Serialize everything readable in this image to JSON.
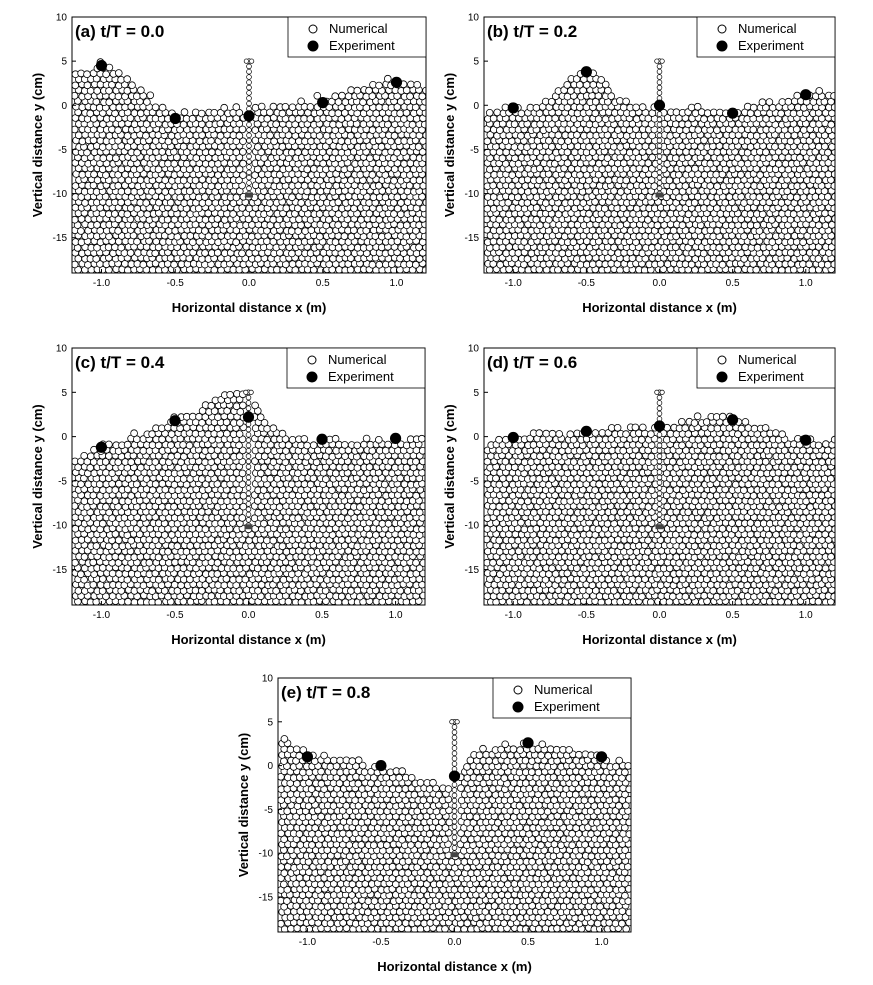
{
  "figure": {
    "panel_count": 5
  },
  "chart_data": [
    {
      "type": "scatter",
      "panel_label": "(a) t/T = 0.0",
      "xlabel": "Horizontal distance x (m)",
      "ylabel": "Vertical distance y (cm)",
      "xlim": [
        -1.2,
        1.2
      ],
      "ylim": [
        -19,
        10
      ],
      "xticks": [
        -1.0,
        -0.5,
        0.0,
        0.5,
        1.0
      ],
      "xtick_labels": [
        "-1.0",
        "-0.5",
        "0.0",
        "0.5",
        "1.0"
      ],
      "yticks": [
        10,
        5,
        0,
        -5,
        -10,
        -15
      ],
      "ytick_labels": [
        "10",
        "5",
        "0",
        "-5",
        "-10",
        "-15"
      ],
      "grid": false,
      "legend_position": "top-right",
      "series": [
        {
          "name": "Numerical",
          "marker": "open-circle",
          "free_surface": {
            "x": [
              -1.2,
              -1.1,
              -1.0,
              -0.9,
              -0.8,
              -0.7,
              -0.6,
              -0.5,
              -0.4,
              -0.3,
              -0.2,
              -0.1,
              0.0,
              0.1,
              0.2,
              0.3,
              0.4,
              0.5,
              0.6,
              0.7,
              0.8,
              0.9,
              1.0,
              1.1,
              1.2
            ],
            "y": [
              3.5,
              4.0,
              4.8,
              4.2,
              2.8,
              1.2,
              -0.3,
              -1.2,
              -0.9,
              -0.5,
              -0.2,
              0.0,
              -0.5,
              -0.3,
              0.0,
              0.3,
              0.6,
              0.9,
              1.4,
              1.8,
              2.3,
              2.7,
              3.0,
              2.7,
              2.2
            ]
          }
        },
        {
          "name": "Experiment",
          "marker": "filled-circle",
          "x": [
            -1.0,
            -0.5,
            0.0,
            0.5,
            1.0
          ],
          "y": [
            4.5,
            -1.5,
            -1.2,
            0.3,
            2.6
          ]
        }
      ]
    },
    {
      "type": "scatter",
      "panel_label": "(b) t/T = 0.2",
      "xlabel": "Horizontal distance x (m)",
      "ylabel": "Vertical distance y (cm)",
      "xlim": [
        -1.2,
        1.2
      ],
      "ylim": [
        -19,
        10
      ],
      "xticks": [
        -1.0,
        -0.5,
        0.0,
        0.5,
        1.0
      ],
      "xtick_labels": [
        "-1.0",
        "-0.5",
        "0.0",
        "0.5",
        "1.0"
      ],
      "yticks": [
        10,
        5,
        0,
        -5,
        -10,
        -15
      ],
      "ytick_labels": [
        "10",
        "5",
        "0",
        "-5",
        "-10",
        "-15"
      ],
      "grid": false,
      "legend_position": "top-right",
      "series": [
        {
          "name": "Numerical",
          "marker": "open-circle",
          "free_surface": {
            "x": [
              -1.2,
              -1.1,
              -1.0,
              -0.9,
              -0.8,
              -0.7,
              -0.6,
              -0.5,
              -0.4,
              -0.3,
              -0.2,
              -0.1,
              0.0,
              0.1,
              0.2,
              0.3,
              0.4,
              0.5,
              0.6,
              0.7,
              0.8,
              0.9,
              1.0,
              1.1,
              1.2
            ],
            "y": [
              -0.5,
              -0.4,
              -0.2,
              0.0,
              0.3,
              1.5,
              3.0,
              4.1,
              3.2,
              1.2,
              0.0,
              -0.2,
              -0.3,
              -0.4,
              -0.3,
              -0.2,
              -0.2,
              -0.2,
              0.0,
              0.3,
              0.6,
              0.9,
              1.2,
              1.5,
              1.8
            ]
          }
        },
        {
          "name": "Experiment",
          "marker": "filled-circle",
          "x": [
            -1.0,
            -0.5,
            0.0,
            0.5,
            1.0
          ],
          "y": [
            -0.3,
            3.8,
            0.0,
            -0.9,
            1.2
          ]
        }
      ]
    },
    {
      "type": "scatter",
      "panel_label": "(c) t/T = 0.4",
      "xlabel": "Horizontal distance x (m)",
      "ylabel": "Vertical distance y (cm)",
      "xlim": [
        -1.2,
        1.2
      ],
      "ylim": [
        -19,
        10
      ],
      "xticks": [
        -1.0,
        -0.5,
        0.0,
        0.5,
        1.0
      ],
      "xtick_labels": [
        "-1.0",
        "-0.5",
        "0.0",
        "0.5",
        "1.0"
      ],
      "yticks": [
        10,
        5,
        0,
        -5,
        -10,
        -15
      ],
      "ytick_labels": [
        "10",
        "5",
        "0",
        "-5",
        "-10",
        "-15"
      ],
      "grid": false,
      "legend_position": "top-right",
      "series": [
        {
          "name": "Numerical",
          "marker": "open-circle",
          "free_surface": {
            "x": [
              -1.2,
              -1.1,
              -1.0,
              -0.9,
              -0.8,
              -0.7,
              -0.6,
              -0.5,
              -0.4,
              -0.3,
              -0.2,
              -0.1,
              0.0,
              0.1,
              0.2,
              0.3,
              0.4,
              0.5,
              0.6,
              0.7,
              0.8,
              0.9,
              1.0,
              1.1,
              1.2
            ],
            "y": [
              -2.0,
              -1.6,
              -1.2,
              -0.5,
              0.3,
              0.8,
              1.4,
              1.9,
              2.6,
              3.5,
              4.5,
              5.2,
              5.0,
              2.0,
              0.6,
              -0.1,
              -0.3,
              -0.4,
              -0.4,
              -0.3,
              -0.3,
              -0.3,
              -0.3,
              -0.2,
              -0.1
            ]
          }
        },
        {
          "name": "Experiment",
          "marker": "filled-circle",
          "x": [
            -1.0,
            -0.5,
            0.0,
            0.5,
            1.0
          ],
          "y": [
            -1.2,
            1.8,
            2.2,
            -0.3,
            -0.2
          ]
        }
      ]
    },
    {
      "type": "scatter",
      "panel_label": "(d) t/T = 0.6",
      "xlabel": "Horizontal distance x (m)",
      "ylabel": "Vertical distance y (cm)",
      "xlim": [
        -1.2,
        1.2
      ],
      "ylim": [
        -19,
        10
      ],
      "xticks": [
        -1.0,
        -0.5,
        0.0,
        0.5,
        1.0
      ],
      "xtick_labels": [
        "-1.0",
        "-0.5",
        "0.0",
        "0.5",
        "1.0"
      ],
      "yticks": [
        10,
        5,
        0,
        -5,
        -10,
        -15
      ],
      "ytick_labels": [
        "10",
        "5",
        "0",
        "-5",
        "-10",
        "-15"
      ],
      "grid": false,
      "legend_position": "top-right",
      "series": [
        {
          "name": "Numerical",
          "marker": "open-circle",
          "free_surface": {
            "x": [
              -1.2,
              -1.1,
              -1.0,
              -0.9,
              -0.8,
              -0.7,
              -0.6,
              -0.5,
              -0.4,
              -0.3,
              -0.2,
              -0.1,
              0.0,
              0.1,
              0.2,
              0.3,
              0.4,
              0.5,
              0.6,
              0.7,
              0.8,
              0.9,
              1.0,
              1.1,
              1.2
            ],
            "y": [
              -0.4,
              -0.2,
              0.0,
              0.2,
              0.4,
              0.5,
              0.6,
              0.7,
              0.8,
              0.9,
              1.0,
              1.1,
              1.3,
              1.7,
              2.0,
              2.2,
              2.2,
              2.0,
              1.5,
              1.0,
              0.4,
              0.0,
              -0.4,
              -0.5,
              -0.5
            ]
          }
        },
        {
          "name": "Experiment",
          "marker": "filled-circle",
          "x": [
            -1.0,
            -0.5,
            0.0,
            0.5,
            1.0
          ],
          "y": [
            -0.1,
            0.6,
            1.2,
            1.9,
            -0.4
          ]
        }
      ]
    },
    {
      "type": "scatter",
      "panel_label": "(e) t/T = 0.8",
      "xlabel": "Horizontal distance x (m)",
      "ylabel": "Vertical distance y (cm)",
      "xlim": [
        -1.2,
        1.2
      ],
      "ylim": [
        -19,
        10
      ],
      "xticks": [
        -1.0,
        -0.5,
        0.0,
        0.5,
        1.0
      ],
      "xtick_labels": [
        "-1.0",
        "-0.5",
        "0.0",
        "0.5",
        "1.0"
      ],
      "yticks": [
        10,
        5,
        0,
        -5,
        -10,
        -15
      ],
      "ytick_labels": [
        "10",
        "5",
        "0",
        "-5",
        "-10",
        "-15"
      ],
      "grid": false,
      "legend_position": "top-right",
      "series": [
        {
          "name": "Numerical",
          "marker": "open-circle",
          "free_surface": {
            "x": [
              -1.2,
              -1.1,
              -1.0,
              -0.9,
              -0.8,
              -0.7,
              -0.6,
              -0.5,
              -0.4,
              -0.3,
              -0.2,
              -0.1,
              0.0,
              0.1,
              0.2,
              0.3,
              0.4,
              0.5,
              0.6,
              0.7,
              0.8,
              0.9,
              1.0,
              1.1,
              1.2
            ],
            "y": [
              4.0,
              2.2,
              1.4,
              1.0,
              0.8,
              0.5,
              0.3,
              0.0,
              -0.5,
              -1.0,
              -1.5,
              -2.0,
              -1.5,
              1.5,
              2.0,
              2.3,
              2.5,
              2.6,
              2.6,
              2.4,
              2.0,
              1.6,
              1.2,
              0.6,
              0.0
            ]
          }
        },
        {
          "name": "Experiment",
          "marker": "filled-circle",
          "x": [
            -1.0,
            -0.5,
            0.0,
            0.5,
            1.0
          ],
          "y": [
            1.0,
            0.0,
            -1.2,
            2.6,
            1.0
          ]
        }
      ]
    }
  ]
}
